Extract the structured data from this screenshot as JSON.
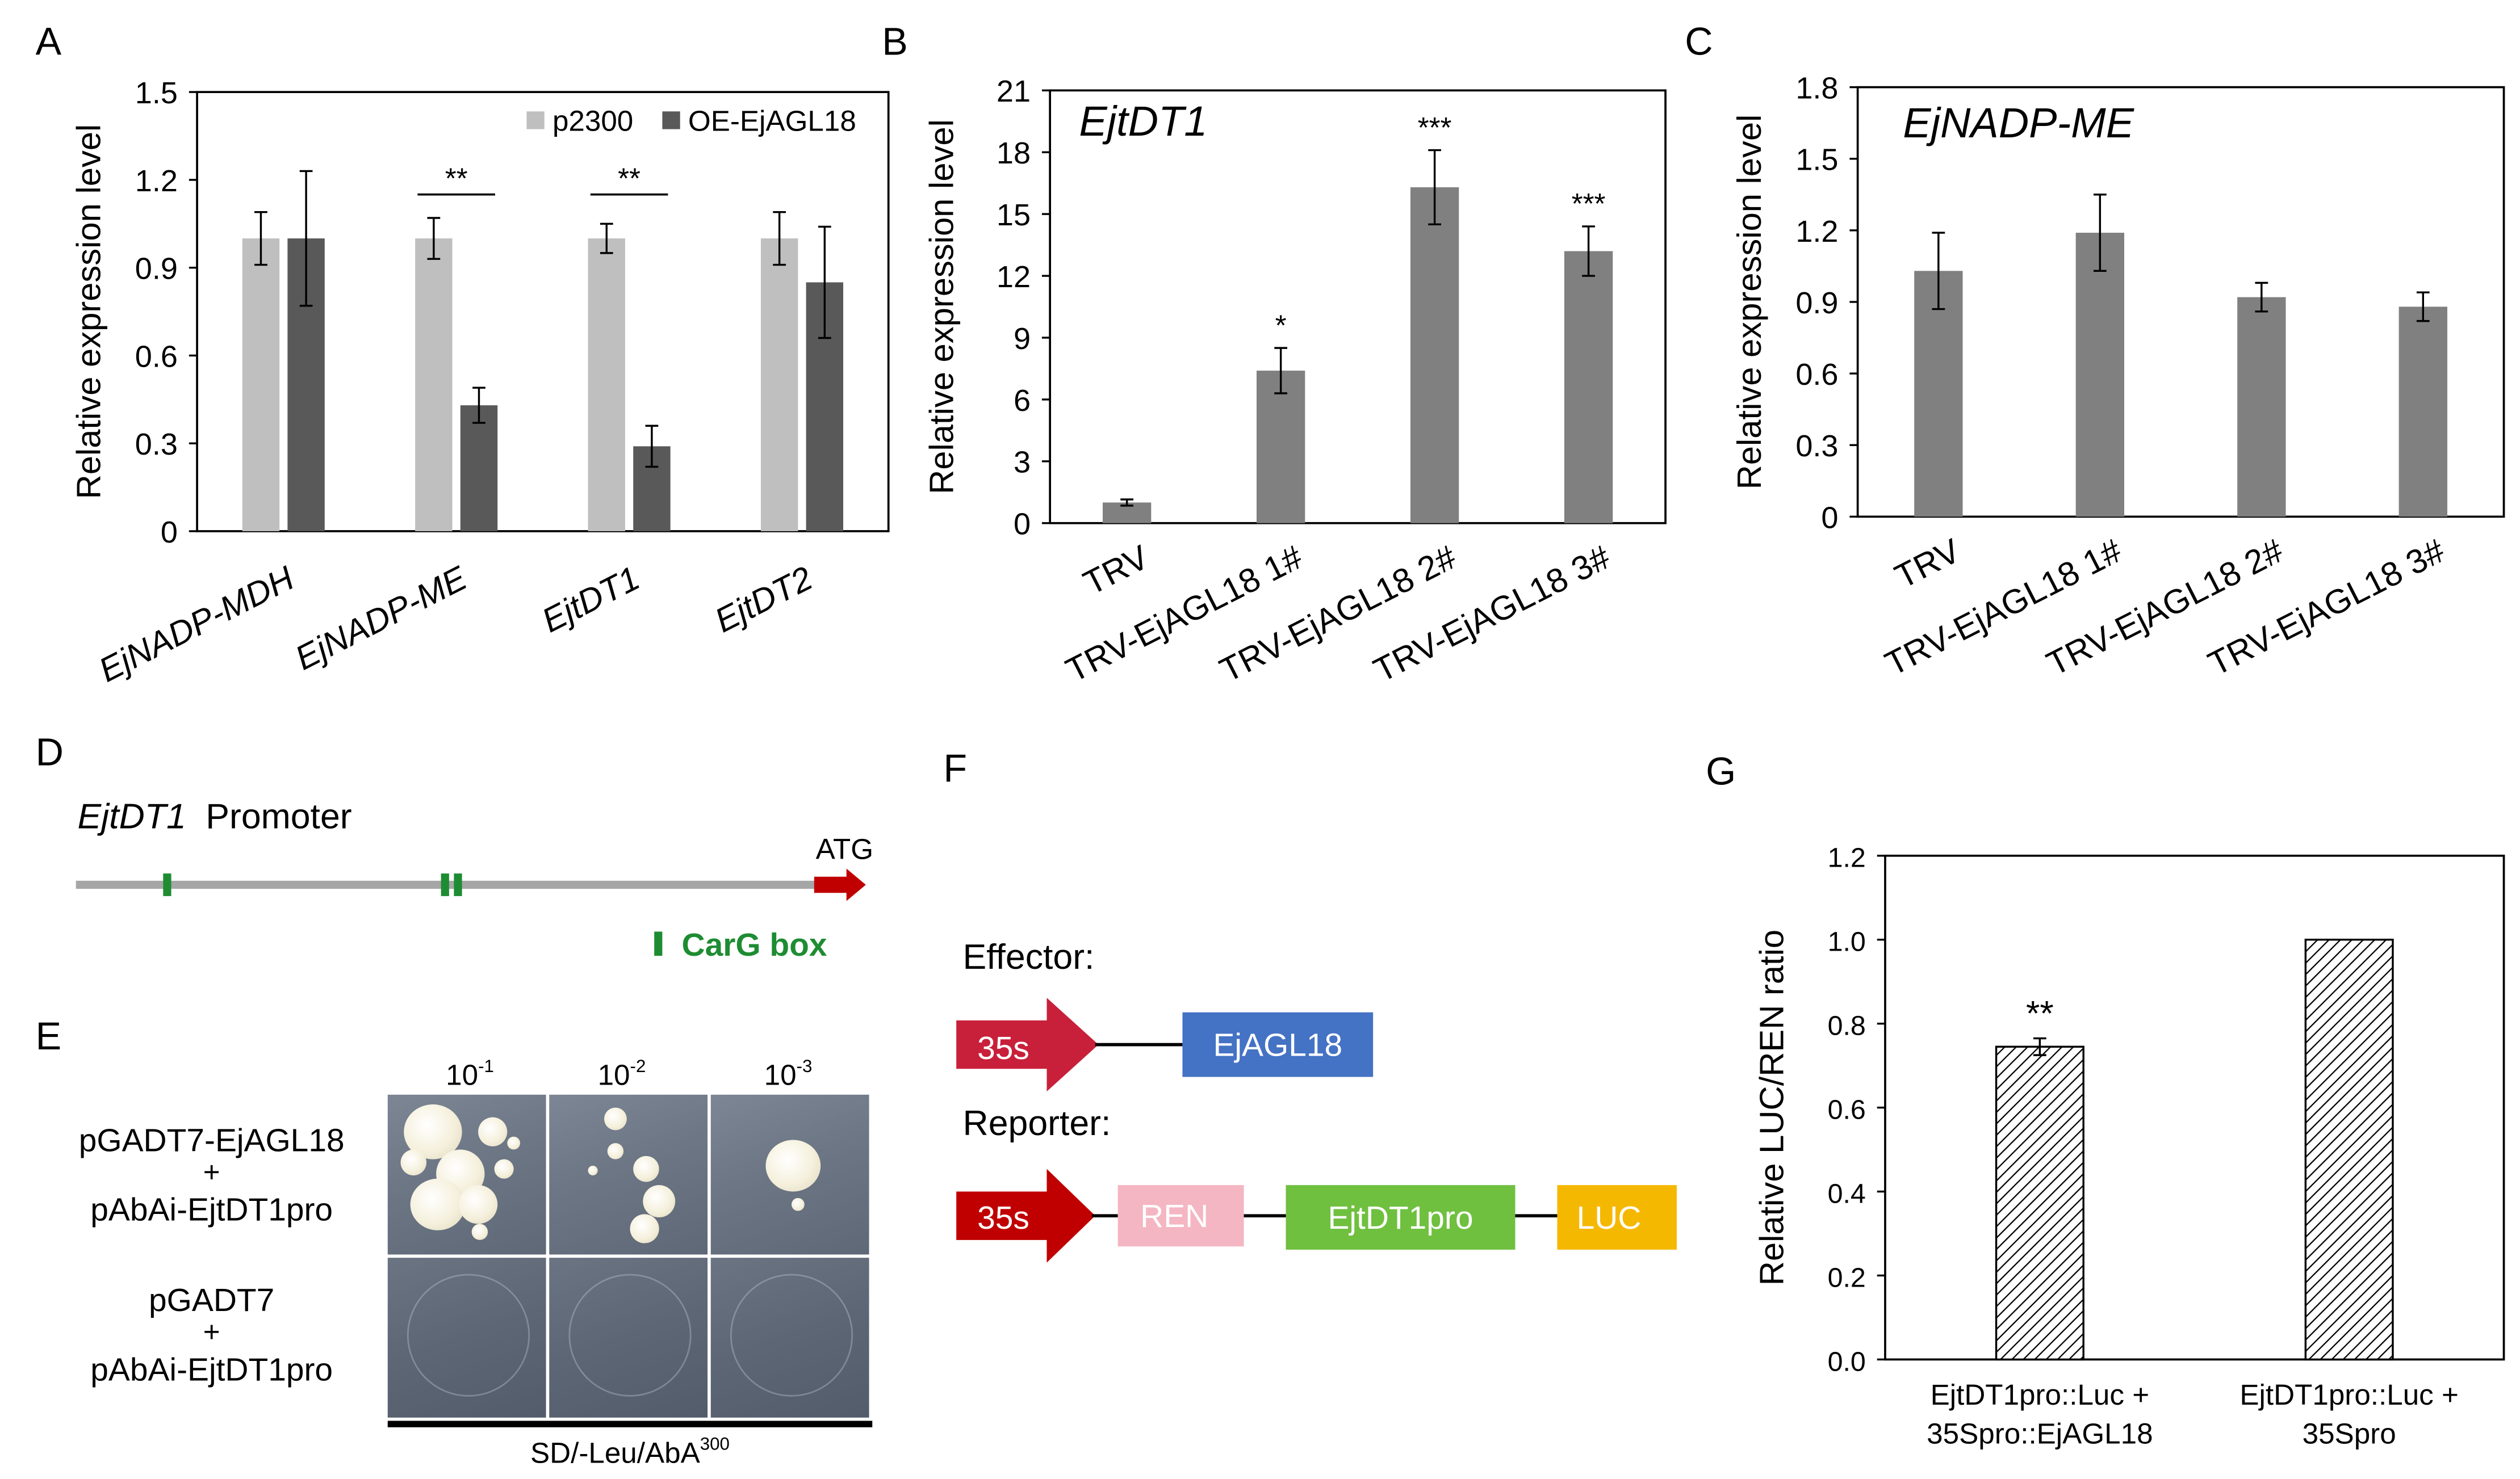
{
  "panels": {
    "A": "A",
    "B": "B",
    "C": "C",
    "D": "D",
    "E": "E",
    "F": "F",
    "G": "G"
  },
  "chart_data": [
    {
      "id": "A",
      "type": "bar",
      "title": "",
      "ylabel": "Relative expression level",
      "ylim": [
        0,
        1.5
      ],
      "yticks": [
        "0",
        "0.3",
        "0.6",
        "0.9",
        "1.2",
        "1.5"
      ],
      "categories": [
        "EjNADP-MDH",
        "EjNADP-ME",
        "EjtDT1",
        "EjtDT2"
      ],
      "series": [
        {
          "name": "p2300",
          "color": "#bfbfbf",
          "values": [
            1.0,
            1.0,
            1.0,
            1.0
          ],
          "errors": [
            0.09,
            0.07,
            0.05,
            0.09
          ]
        },
        {
          "name": "OE-EjAGL18",
          "color": "#595959",
          "values": [
            1.0,
            0.43,
            0.29,
            0.85
          ],
          "errors": [
            0.23,
            0.06,
            0.07,
            0.19
          ]
        }
      ],
      "significance": [
        "",
        "**",
        "**",
        ""
      ],
      "legend": "top-right"
    },
    {
      "id": "B",
      "type": "bar",
      "title": "EjtDT1",
      "ylabel": "Relative expression level",
      "ylim": [
        0,
        21
      ],
      "yticks": [
        "0",
        "3",
        "6",
        "9",
        "12",
        "15",
        "18",
        "21"
      ],
      "categories": [
        "TRV",
        "TRV-EjAGL18 1#",
        "TRV-EjAGL18 2#",
        "TRV-EjAGL18 3#"
      ],
      "series": [
        {
          "name": "EjtDT1",
          "color": "#808080",
          "values": [
            1.0,
            7.4,
            16.3,
            13.2
          ],
          "errors": [
            0.15,
            1.1,
            1.8,
            1.2
          ]
        }
      ],
      "significance": [
        "",
        "*",
        "***",
        "***"
      ]
    },
    {
      "id": "C",
      "type": "bar",
      "title": "EjNADP-ME",
      "ylabel": "Relative expression level",
      "ylim": [
        0,
        1.8
      ],
      "yticks": [
        "0",
        "0.3",
        "0.6",
        "0.9",
        "1.2",
        "1.5",
        "1.8"
      ],
      "categories": [
        "TRV",
        "TRV-EjAGL18 1#",
        "TRV-EjAGL18 2#",
        "TRV-EjAGL18 3#"
      ],
      "series": [
        {
          "name": "EjNADP-ME",
          "color": "#808080",
          "values": [
            1.03,
            1.19,
            0.92,
            0.88
          ],
          "errors": [
            0.16,
            0.16,
            0.06,
            0.06
          ]
        }
      ],
      "significance": [
        "",
        "",
        "",
        ""
      ]
    },
    {
      "id": "G",
      "type": "bar",
      "title": "",
      "ylabel": "Relative LUC/REN ratio",
      "ylim": [
        0,
        1.2
      ],
      "yticks": [
        "0.0",
        "0.2",
        "0.4",
        "0.6",
        "0.8",
        "1.0",
        "1.2"
      ],
      "categories": [
        "EjtDT1pro::Luc + 35Spro::EjAGL18",
        "EjtDT1pro::Luc + 35Spro"
      ],
      "category_lines": [
        [
          "EjtDT1pro::Luc +",
          "35Spro::EjAGL18"
        ],
        [
          "EjtDT1pro::Luc +",
          "35Spro"
        ]
      ],
      "series": [
        {
          "name": "ratio",
          "pattern": "hatched",
          "values": [
            0.745,
            1.0
          ],
          "errors": [
            0.02,
            0
          ]
        }
      ],
      "significance": [
        "**",
        ""
      ]
    }
  ],
  "promoter": {
    "gene": "EjtDT1",
    "label": "Promoter",
    "atg": "ATG",
    "legend": "CarG box",
    "colors": {
      "line": "#a6a6a6",
      "arrow": "#c00000",
      "box": "#1e8c32"
    }
  },
  "y1h": {
    "dilutions": [
      {
        "base": "10",
        "exp": "-1"
      },
      {
        "base": "10",
        "exp": "-2"
      },
      {
        "base": "10",
        "exp": "-3"
      }
    ],
    "row1": {
      "line1": "pGADT7-EjAGL18",
      "plus": "+",
      "line2": "pAbAi-EjtDT1pro"
    },
    "row2": {
      "line1": "pGADT7",
      "plus": "+",
      "line2": "pAbAi-EjtDT1pro"
    },
    "medium": {
      "text": "SD/-Leu/AbA",
      "sup": "300"
    }
  },
  "constructs": {
    "effector_label": "Effector:",
    "reporter_label": "Reporter:",
    "promoter": "35s",
    "effector_gene": "EjAGL18",
    "reporter_parts": [
      "REN",
      "EjtDT1pro",
      "LUC"
    ],
    "colors": {
      "effector_arrow": "#c8203a",
      "reporter_arrow": "#c00000",
      "gene": "#4472c4",
      "ren": "#f4b6c2",
      "pro": "#70c040",
      "luc": "#f5b800"
    }
  }
}
